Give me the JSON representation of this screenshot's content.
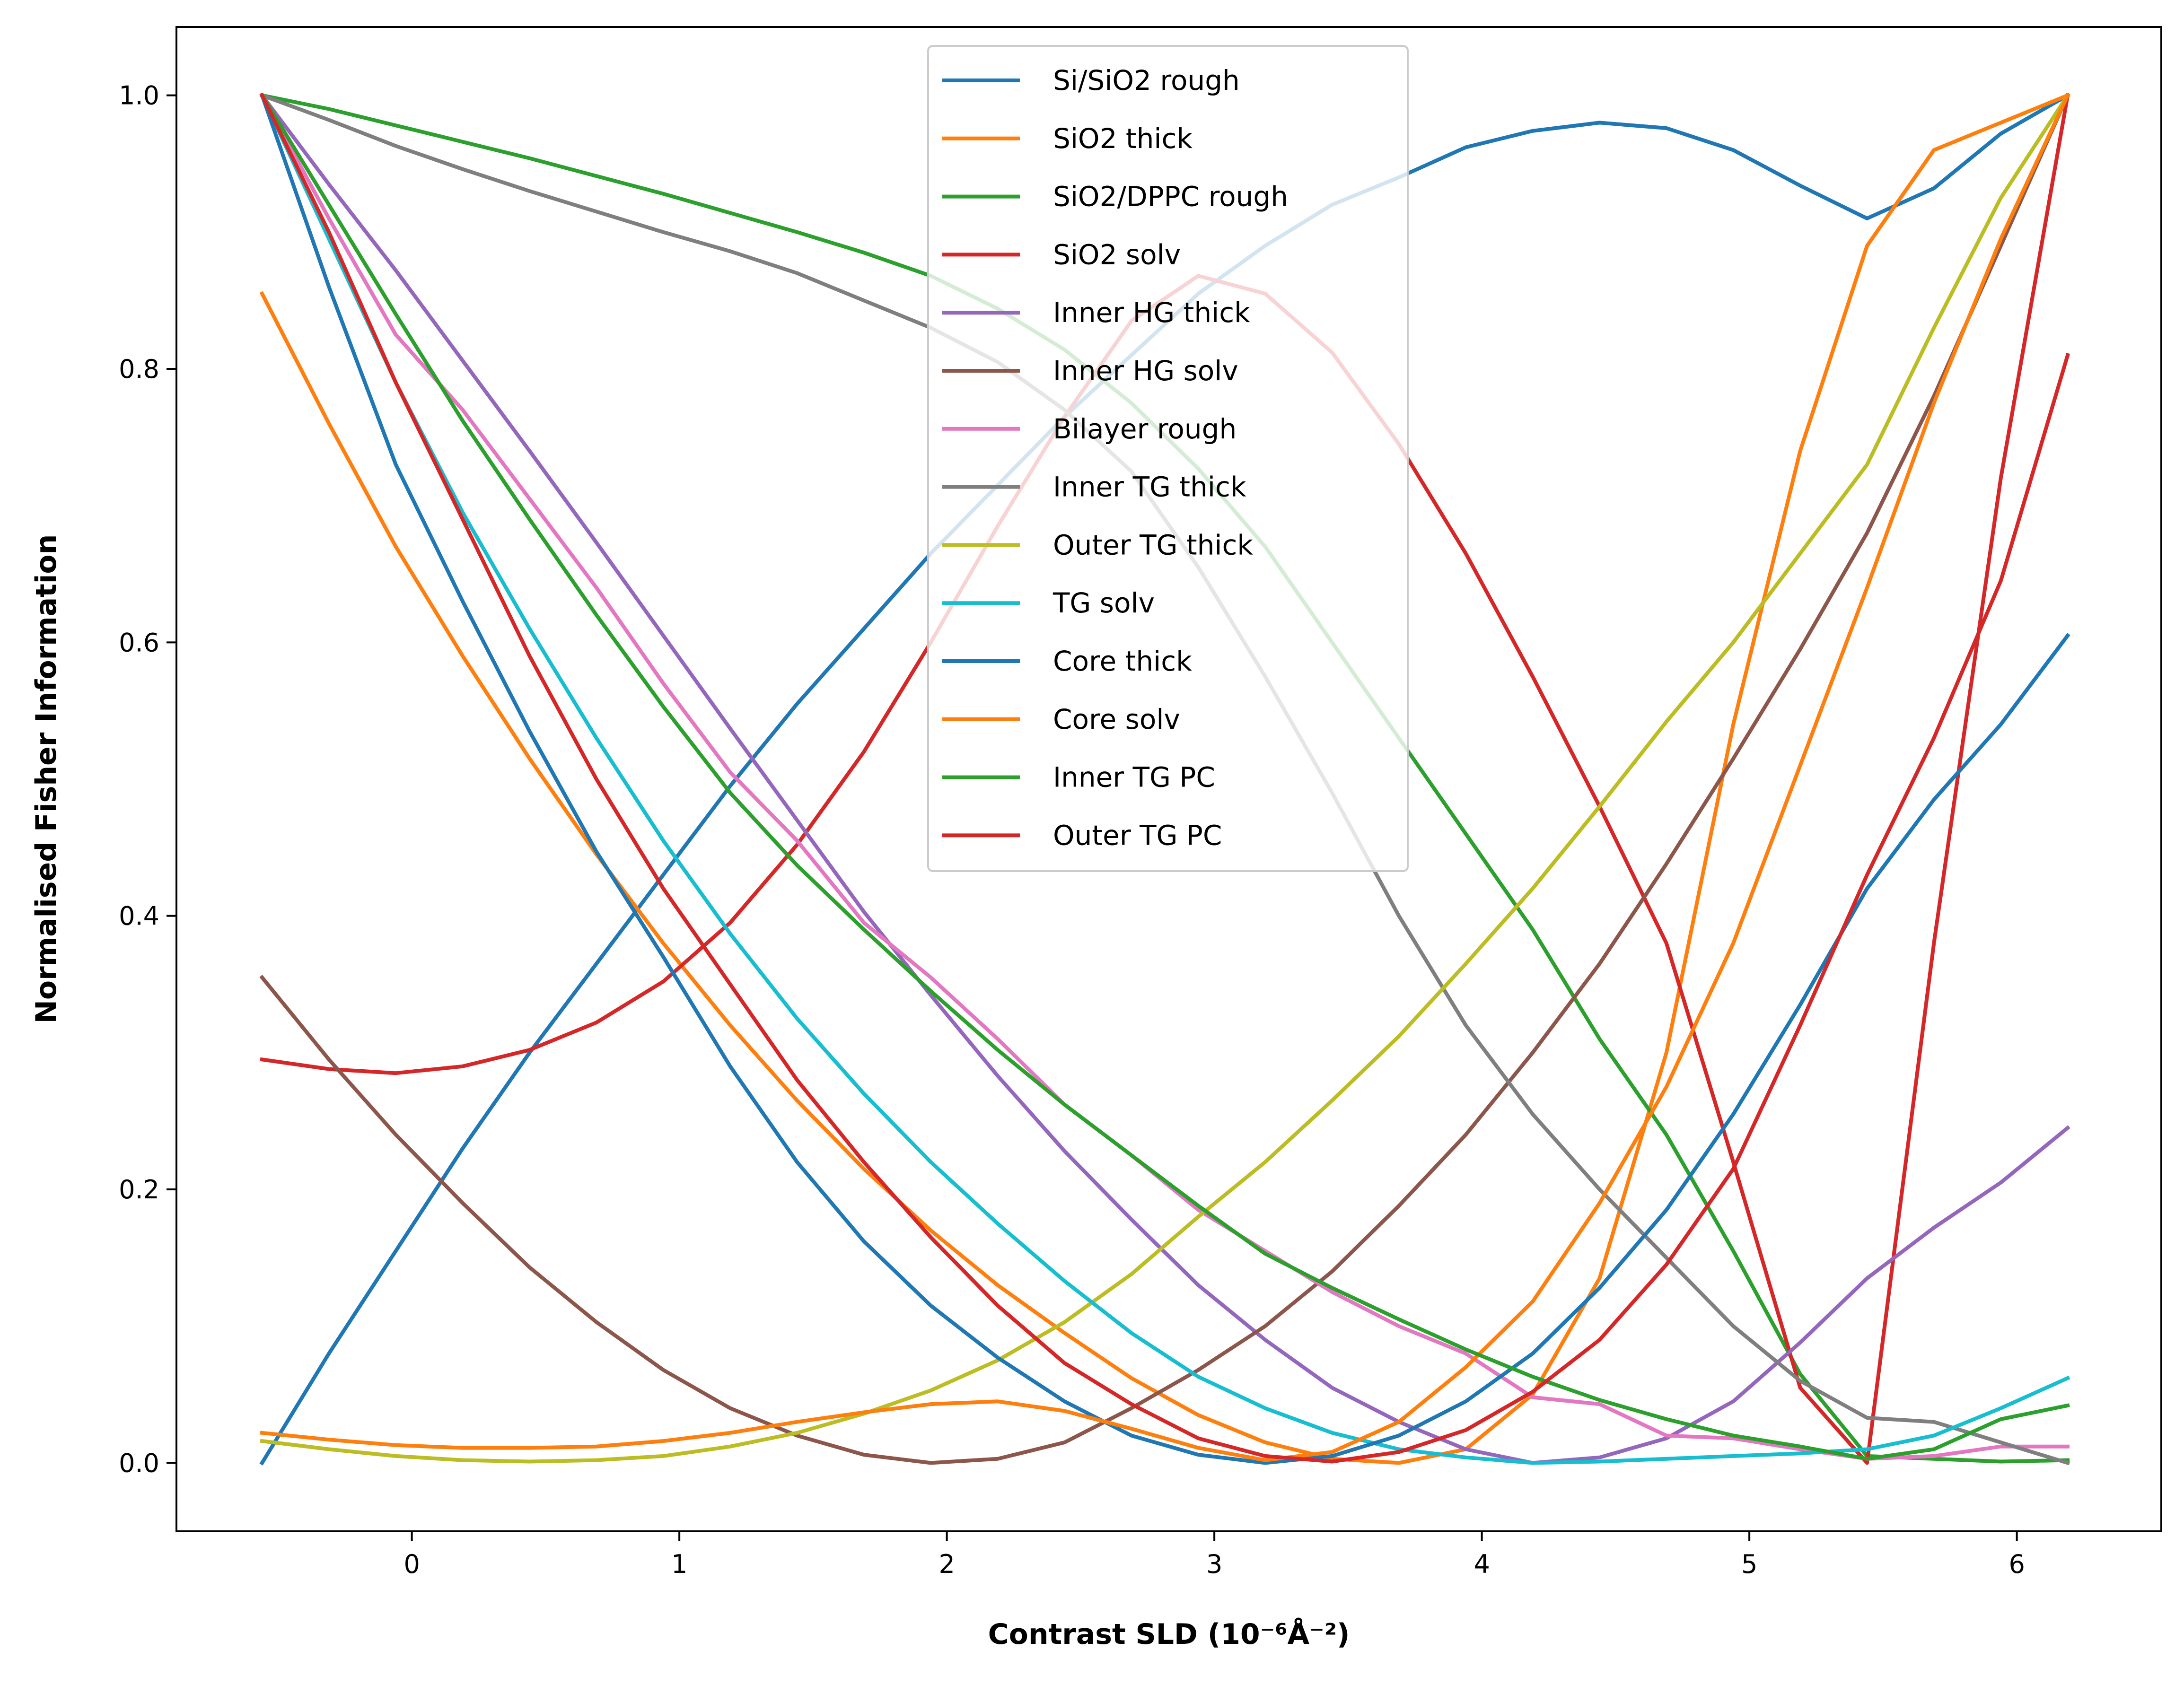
{
  "chart_data": {
    "type": "line",
    "xlabel": "Contrast SLD (10⁻⁶Å⁻²)",
    "ylabel": "Normalised Fisher Information",
    "xlim": [
      -0.88,
      6.54
    ],
    "ylim": [
      -0.05,
      1.05
    ],
    "x_ticks": [
      0,
      1,
      2,
      3,
      4,
      5,
      6
    ],
    "x_tick_labels": [
      "0",
      "1",
      "2",
      "3",
      "4",
      "5",
      "6"
    ],
    "y_ticks": [
      0.0,
      0.2,
      0.4,
      0.6,
      0.8,
      1.0
    ],
    "y_tick_labels": [
      "0.0",
      "0.2",
      "0.4",
      "0.6",
      "0.8",
      "1.0"
    ],
    "grid": false,
    "legend_position": "top-center",
    "x": [
      -0.56,
      -0.31,
      -0.06,
      0.19,
      0.44,
      0.69,
      0.94,
      1.19,
      1.44,
      1.69,
      1.94,
      2.19,
      2.44,
      2.69,
      2.94,
      3.19,
      3.44,
      3.69,
      3.94,
      4.19,
      4.44,
      4.69,
      4.94,
      5.19,
      5.44,
      5.69,
      5.94,
      6.19
    ],
    "series": [
      {
        "name": "Si/SiO2 rough",
        "color": "#1f77b4",
        "values": [
          0.0,
          0.08,
          0.155,
          0.23,
          0.3,
          0.365,
          0.43,
          0.495,
          0.555,
          0.61,
          0.665,
          0.715,
          0.765,
          0.81,
          0.855,
          0.89,
          0.92,
          0.94,
          0.962,
          0.974,
          0.98,
          0.976,
          0.96,
          0.934,
          0.91,
          0.932,
          0.972,
          1.0
        ]
      },
      {
        "name": "SiO2 thick",
        "color": "#ff7f0e",
        "values": [
          0.855,
          0.76,
          0.67,
          0.59,
          0.515,
          0.445,
          0.38,
          0.32,
          0.265,
          0.215,
          0.17,
          0.13,
          0.095,
          0.062,
          0.035,
          0.015,
          0.003,
          0.0,
          0.01,
          0.05,
          0.135,
          0.3,
          0.54,
          0.74,
          0.89,
          0.96,
          0.98,
          1.0
        ]
      },
      {
        "name": "SiO2/DPPC rough",
        "color": "#2ca02c",
        "values": [
          1.0,
          0.99,
          0.978,
          0.966,
          0.954,
          0.941,
          0.928,
          0.914,
          0.9,
          0.885,
          0.868,
          0.844,
          0.814,
          0.775,
          0.727,
          0.67,
          0.6,
          0.53,
          0.46,
          0.39,
          0.31,
          0.24,
          0.155,
          0.065,
          0.005,
          0.003,
          0.001,
          0.002
        ]
      },
      {
        "name": "SiO2 solv",
        "color": "#d62728",
        "values": [
          0.295,
          0.288,
          0.285,
          0.29,
          0.302,
          0.322,
          0.352,
          0.395,
          0.452,
          0.52,
          0.6,
          0.685,
          0.765,
          0.835,
          0.868,
          0.855,
          0.812,
          0.745,
          0.665,
          0.575,
          0.48,
          0.38,
          0.22,
          0.055,
          0.0,
          0.38,
          0.72,
          1.0
        ]
      },
      {
        "name": "Inner HG thick",
        "color": "#9467bd",
        "values": [
          1.0,
          0.935,
          0.872,
          0.806,
          0.74,
          0.673,
          0.605,
          0.537,
          0.47,
          0.403,
          0.342,
          0.283,
          0.228,
          0.178,
          0.13,
          0.09,
          0.055,
          0.03,
          0.01,
          0.0,
          0.004,
          0.018,
          0.045,
          0.088,
          0.135,
          0.172,
          0.205,
          0.245
        ]
      },
      {
        "name": "Inner HG solv",
        "color": "#8c564b",
        "values": [
          0.355,
          0.295,
          0.24,
          0.19,
          0.143,
          0.103,
          0.068,
          0.04,
          0.02,
          0.006,
          0.0,
          0.003,
          0.015,
          0.04,
          0.068,
          0.1,
          0.14,
          0.188,
          0.24,
          0.3,
          0.365,
          0.438,
          0.515,
          0.595,
          0.68,
          0.78,
          0.89,
          1.0
        ]
      },
      {
        "name": "Bilayer rough",
        "color": "#e377c2",
        "values": [
          1.0,
          0.91,
          0.825,
          0.77,
          0.705,
          0.64,
          0.57,
          0.505,
          0.455,
          0.395,
          0.355,
          0.31,
          0.262,
          0.225,
          0.185,
          0.155,
          0.125,
          0.1,
          0.08,
          0.048,
          0.043,
          0.02,
          0.018,
          0.01,
          0.003,
          0.005,
          0.012,
          0.012
        ]
      },
      {
        "name": "Inner TG thick",
        "color": "#7f7f7f",
        "values": [
          1.0,
          0.982,
          0.963,
          0.946,
          0.93,
          0.915,
          0.9,
          0.886,
          0.87,
          0.85,
          0.83,
          0.805,
          0.77,
          0.725,
          0.655,
          0.575,
          0.49,
          0.4,
          0.32,
          0.255,
          0.2,
          0.15,
          0.1,
          0.06,
          0.033,
          0.03,
          0.015,
          0.0
        ]
      },
      {
        "name": "Outer TG thick",
        "color": "#bcbd22",
        "values": [
          0.016,
          0.01,
          0.005,
          0.002,
          0.001,
          0.002,
          0.005,
          0.012,
          0.022,
          0.036,
          0.053,
          0.075,
          0.103,
          0.138,
          0.18,
          0.22,
          0.265,
          0.312,
          0.365,
          0.42,
          0.48,
          0.542,
          0.6,
          0.665,
          0.73,
          0.83,
          0.925,
          1.0
        ]
      },
      {
        "name": "TG solv",
        "color": "#17becf",
        "values": [
          1.0,
          0.895,
          0.79,
          0.695,
          0.61,
          0.53,
          0.455,
          0.387,
          0.325,
          0.27,
          0.22,
          0.175,
          0.133,
          0.095,
          0.063,
          0.04,
          0.022,
          0.01,
          0.004,
          0.0,
          0.001,
          0.003,
          0.005,
          0.007,
          0.01,
          0.02,
          0.04,
          0.062
        ]
      },
      {
        "name": "Core thick",
        "color": "#1f77b4",
        "values": [
          1.0,
          0.86,
          0.73,
          0.63,
          0.535,
          0.447,
          0.37,
          0.29,
          0.22,
          0.162,
          0.115,
          0.077,
          0.045,
          0.02,
          0.006,
          0.0,
          0.005,
          0.02,
          0.045,
          0.08,
          0.128,
          0.185,
          0.255,
          0.335,
          0.42,
          0.485,
          0.54,
          0.605
        ]
      },
      {
        "name": "Core solv",
        "color": "#ff7f0e",
        "values": [
          0.022,
          0.017,
          0.013,
          0.011,
          0.011,
          0.012,
          0.016,
          0.022,
          0.03,
          0.037,
          0.043,
          0.045,
          0.038,
          0.025,
          0.011,
          0.002,
          0.008,
          0.03,
          0.07,
          0.118,
          0.19,
          0.275,
          0.38,
          0.51,
          0.64,
          0.775,
          0.895,
          1.0
        ]
      },
      {
        "name": "Inner TG PC",
        "color": "#2ca02c",
        "values": [
          1.0,
          0.92,
          0.84,
          0.762,
          0.69,
          0.62,
          0.553,
          0.49,
          0.437,
          0.39,
          0.345,
          0.302,
          0.262,
          0.225,
          0.188,
          0.153,
          0.128,
          0.105,
          0.083,
          0.063,
          0.046,
          0.032,
          0.02,
          0.012,
          0.003,
          0.01,
          0.032,
          0.042
        ]
      },
      {
        "name": "Outer TG PC",
        "color": "#d62728",
        "values": [
          1.0,
          0.9,
          0.79,
          0.69,
          0.59,
          0.5,
          0.42,
          0.35,
          0.28,
          0.22,
          0.165,
          0.115,
          0.073,
          0.043,
          0.018,
          0.005,
          0.001,
          0.008,
          0.024,
          0.052,
          0.09,
          0.145,
          0.215,
          0.32,
          0.43,
          0.53,
          0.645,
          0.81
        ]
      }
    ]
  }
}
